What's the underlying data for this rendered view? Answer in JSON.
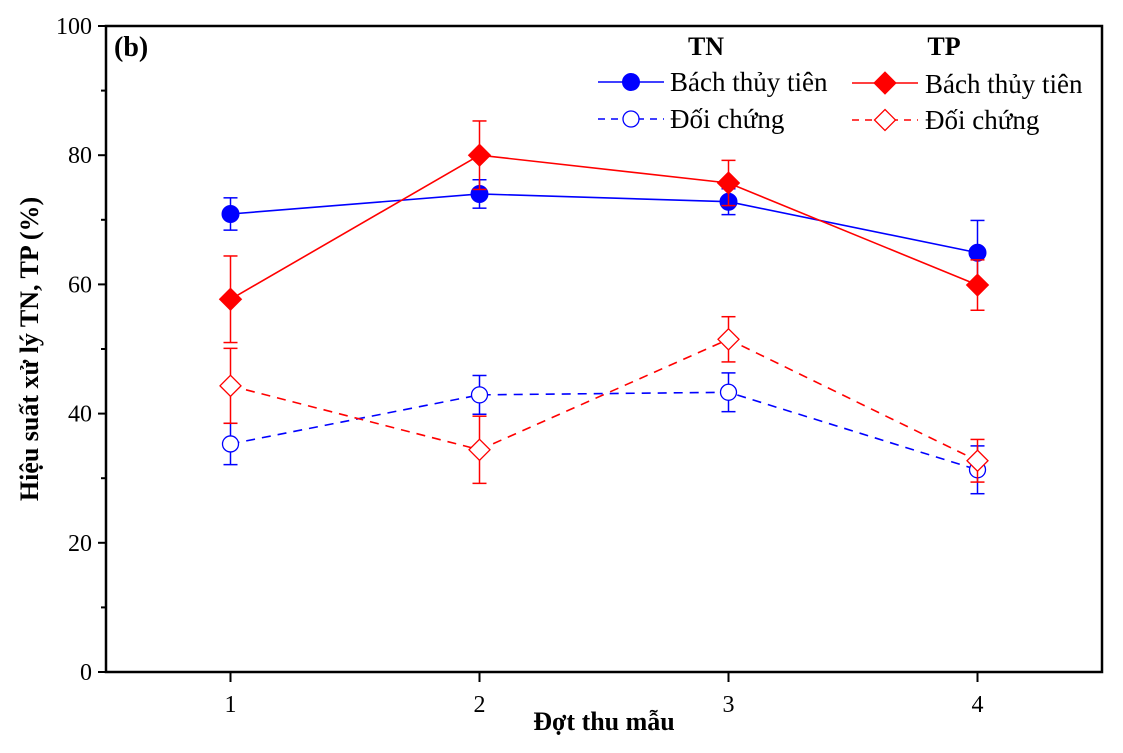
{
  "chart_data": {
    "type": "line",
    "panel_label": "(b)",
    "xlabel": "Đợt thu mẫu",
    "ylabel": "Hiệu suất xử lý TN, TP (%)",
    "x": [
      1,
      2,
      3,
      4
    ],
    "x_tick_labels": [
      "1",
      "2",
      "3",
      "4"
    ],
    "xlim": [
      0.5,
      4.5
    ],
    "ylim": [
      0,
      100
    ],
    "y_ticks": [
      0,
      20,
      40,
      60,
      80,
      100
    ],
    "y_tick_labels": [
      "0",
      "20",
      "40",
      "60",
      "80",
      "100"
    ],
    "y_minor_ticks": [
      10,
      30,
      50,
      70,
      90
    ],
    "grid": false,
    "legend": {
      "placement": "top-right",
      "groups": [
        {
          "heading": "TN",
          "entries": [
            "Bách thủy tiên",
            "Đối chứng"
          ]
        },
        {
          "heading": "TP",
          "entries": [
            "Bách thủy tiên",
            "Đối chứng"
          ]
        }
      ]
    },
    "series": [
      {
        "name": "TN - Bách thủy tiên",
        "group": "TN",
        "label": "Bách thủy tiên",
        "color": "#0000ff",
        "marker": "circle",
        "filled": true,
        "dashed": false,
        "values": [
          70.9,
          74.0,
          72.8,
          64.9
        ],
        "errors": [
          2.5,
          2.2,
          2.0,
          5.0
        ]
      },
      {
        "name": "TN - Đối chứng",
        "group": "TN",
        "label": "Đối chứng",
        "color": "#0000ff",
        "marker": "circle",
        "filled": false,
        "dashed": true,
        "values": [
          35.3,
          42.9,
          43.3,
          31.3
        ],
        "errors": [
          3.2,
          3.0,
          3.0,
          3.7
        ]
      },
      {
        "name": "TP - Bách thủy tiên",
        "group": "TP",
        "label": "Bách thủy tiên",
        "color": "#ff0000",
        "marker": "diamond",
        "filled": true,
        "dashed": false,
        "values": [
          57.7,
          80.0,
          75.7,
          59.9
        ],
        "errors": [
          6.7,
          5.3,
          3.5,
          3.9
        ]
      },
      {
        "name": "TP - Đối chứng",
        "group": "TP",
        "label": "Đối chứng",
        "color": "#ff0000",
        "marker": "diamond",
        "filled": false,
        "dashed": true,
        "values": [
          44.3,
          34.4,
          51.5,
          32.7
        ],
        "errors": [
          5.8,
          5.2,
          3.5,
          3.3
        ]
      }
    ]
  }
}
